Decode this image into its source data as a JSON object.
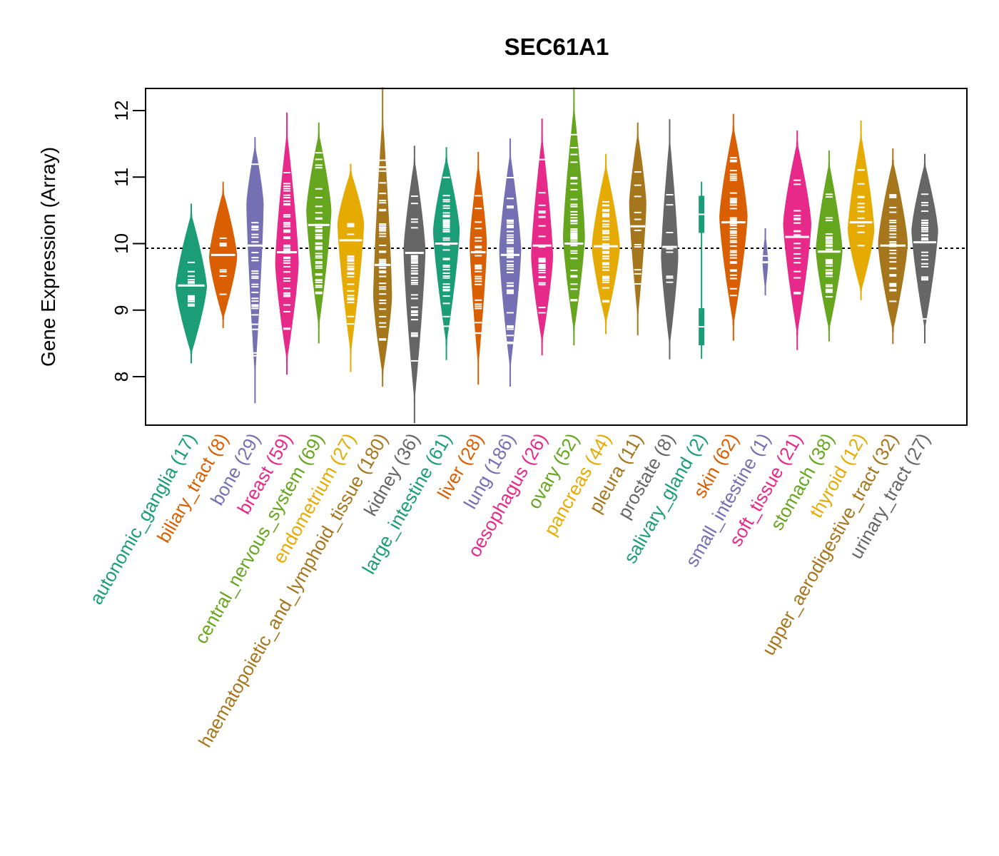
{
  "chart_data": {
    "type": "violin",
    "title": "SEC61A1",
    "xlabel": "",
    "ylabel": "Gene Expression (Array)",
    "ylim": [
      7.33,
      12.36
    ],
    "yticks": [
      8,
      9,
      10,
      11,
      12
    ],
    "reference_line": 9.93,
    "grid": false,
    "legend": "none",
    "categories": [
      {
        "name": "autonomic_ganglia",
        "n": 17,
        "label": "autonomic_ganglia (17)",
        "color": "#1B9E77",
        "median": 9.37,
        "min": 8.2,
        "max": 10.6,
        "peak": 9.35,
        "width": 1.0
      },
      {
        "name": "biliary_tract",
        "n": 8,
        "label": "biliary_tract (8)",
        "color": "#D95F02",
        "median": 9.83,
        "min": 8.73,
        "max": 10.93,
        "peak": 9.8,
        "width": 0.9
      },
      {
        "name": "bone",
        "n": 29,
        "label": "bone (29)",
        "color": "#7570B3",
        "median": 9.97,
        "min": 7.6,
        "max": 11.6,
        "peak": 10.6,
        "width": 0.55
      },
      {
        "name": "breast",
        "n": 59,
        "label": "breast (59)",
        "color": "#E7298A",
        "median": 9.87,
        "min": 8.03,
        "max": 11.97,
        "peak": 9.7,
        "width": 0.75
      },
      {
        "name": "central_nervous_system",
        "n": 69,
        "label": "central_nervous_system (69)",
        "color": "#66A61E",
        "median": 10.28,
        "min": 8.5,
        "max": 11.82,
        "peak": 10.5,
        "width": 0.8
      },
      {
        "name": "endometrium",
        "n": 27,
        "label": "endometrium (27)",
        "color": "#E6AB02",
        "median": 10.05,
        "min": 8.07,
        "max": 11.2,
        "peak": 10.3,
        "width": 0.85
      },
      {
        "name": "haematopoietic_and_lymphoid_tissue",
        "n": 180,
        "label": "haematopoietic_and_lymphoid_tissue (180)",
        "color": "#A6761D",
        "median": 9.68,
        "min": 7.85,
        "max": 12.35,
        "peak": 9.2,
        "width": 0.6
      },
      {
        "name": "kidney",
        "n": 36,
        "label": "kidney (36)",
        "color": "#666666",
        "median": 9.86,
        "min": 7.3,
        "max": 11.47,
        "peak": 9.9,
        "width": 0.7
      },
      {
        "name": "large_intestine",
        "n": 61,
        "label": "large_intestine (61)",
        "color": "#1B9E77",
        "median": 10.0,
        "min": 8.25,
        "max": 11.45,
        "peak": 10.2,
        "width": 0.85
      },
      {
        "name": "liver",
        "n": 28,
        "label": "liver (28)",
        "color": "#D95F02",
        "median": 9.87,
        "min": 7.88,
        "max": 11.38,
        "peak": 10.0,
        "width": 0.55
      },
      {
        "name": "lung",
        "n": 186,
        "label": "lung (186)",
        "color": "#7570B3",
        "median": 9.83,
        "min": 7.85,
        "max": 11.58,
        "peak": 9.9,
        "width": 0.7
      },
      {
        "name": "oesophagus",
        "n": 26,
        "label": "oesophagus (26)",
        "color": "#E7298A",
        "median": 9.97,
        "min": 8.32,
        "max": 11.88,
        "peak": 9.8,
        "width": 0.7
      },
      {
        "name": "ovary",
        "n": 52,
        "label": "ovary (52)",
        "color": "#66A61E",
        "median": 10.0,
        "min": 8.47,
        "max": 12.35,
        "peak": 10.1,
        "width": 0.7
      },
      {
        "name": "pancreas",
        "n": 44,
        "label": "pancreas (44)",
        "color": "#E6AB02",
        "median": 9.96,
        "min": 8.64,
        "max": 11.35,
        "peak": 9.95,
        "width": 0.9
      },
      {
        "name": "pleura",
        "n": 11,
        "label": "pleura (11)",
        "color": "#A6761D",
        "median": 10.26,
        "min": 8.62,
        "max": 11.82,
        "peak": 10.6,
        "width": 0.55
      },
      {
        "name": "prostate",
        "n": 8,
        "label": "prostate (8)",
        "color": "#666666",
        "median": 9.95,
        "min": 8.26,
        "max": 11.87,
        "peak": 9.8,
        "width": 0.55
      },
      {
        "name": "salivary_gland",
        "n": 2,
        "label": "salivary_gland (2)",
        "color": "#1B9E77",
        "median": null,
        "min": 8.27,
        "max": 10.93,
        "points": [
          10.44,
          8.75
        ],
        "width": 0.2
      },
      {
        "name": "skin",
        "n": 62,
        "label": "skin (62)",
        "color": "#D95F02",
        "median": 10.32,
        "min": 8.54,
        "max": 11.95,
        "peak": 10.4,
        "width": 0.9
      },
      {
        "name": "small_intestine",
        "n": 1,
        "label": "small_intestine (1)",
        "color": "#7570B3",
        "median": 9.72,
        "min": 9.22,
        "max": 10.23,
        "peak": 9.72,
        "width": 0.18
      },
      {
        "name": "soft_tissue",
        "n": 21,
        "label": "soft_tissue (21)",
        "color": "#E7298A",
        "median": 10.1,
        "min": 8.4,
        "max": 11.7,
        "peak": 10.3,
        "width": 0.9
      },
      {
        "name": "stomach",
        "n": 38,
        "label": "stomach (38)",
        "color": "#66A61E",
        "median": 9.88,
        "min": 8.53,
        "max": 11.4,
        "peak": 9.9,
        "width": 0.85
      },
      {
        "name": "thyroid",
        "n": 12,
        "label": "thyroid (12)",
        "color": "#E6AB02",
        "median": 10.32,
        "min": 9.15,
        "max": 11.85,
        "peak": 10.2,
        "width": 0.85
      },
      {
        "name": "upper_aerodigestive_tract",
        "n": 32,
        "label": "upper_aerodigestive_tract (32)",
        "color": "#A6761D",
        "median": 9.97,
        "min": 8.49,
        "max": 11.43,
        "peak": 10.0,
        "width": 0.95
      },
      {
        "name": "urinary_tract",
        "n": 27,
        "label": "urinary_tract (27)",
        "color": "#666666",
        "median": 10.02,
        "min": 8.5,
        "max": 11.35,
        "peak": 10.2,
        "width": 0.85
      }
    ]
  }
}
